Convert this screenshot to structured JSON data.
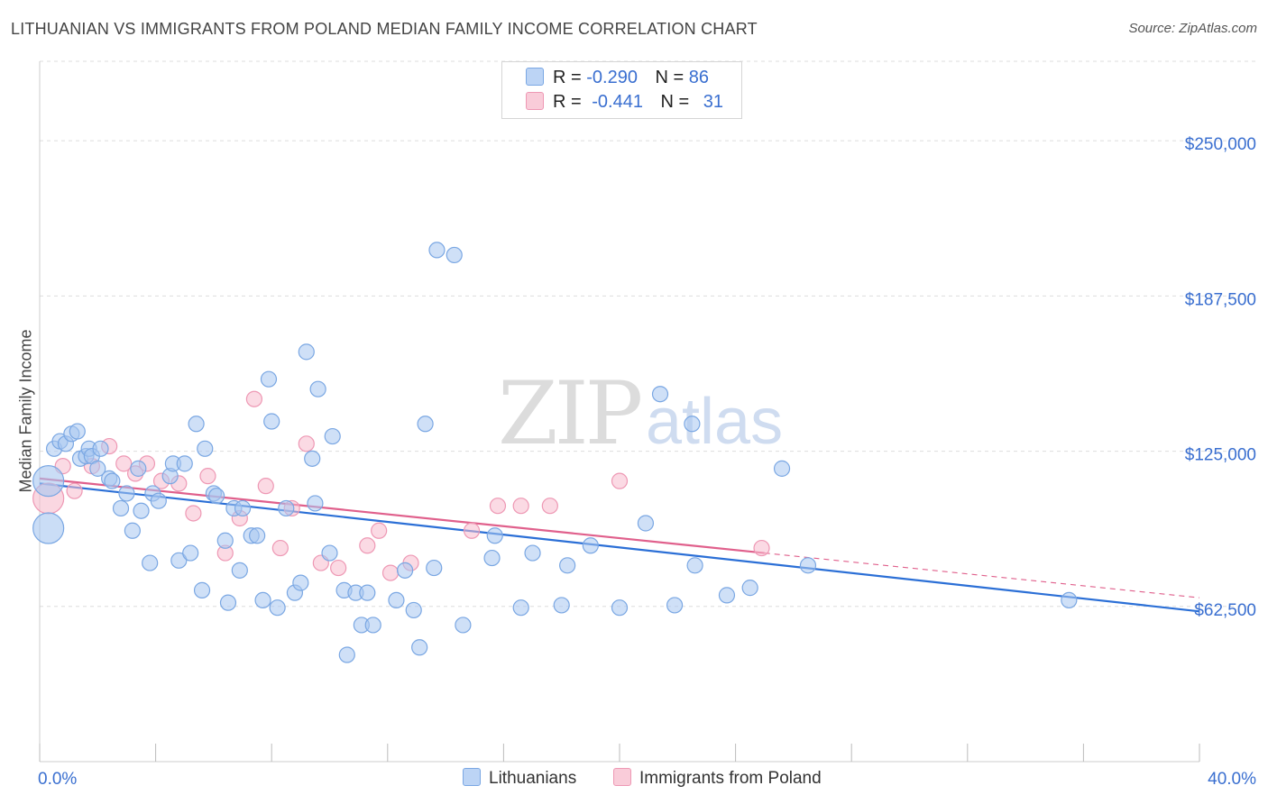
{
  "title": "LITHUANIAN VS IMMIGRANTS FROM POLAND MEDIAN FAMILY INCOME CORRELATION CHART",
  "source": "Source: ZipAtlas.com",
  "watermark": {
    "zip": "ZIP",
    "atlas": "atlas"
  },
  "legend": {
    "rows": [
      {
        "r_label": "R =",
        "r_value": "-0.290",
        "n_label": "N =",
        "n_value": "86"
      },
      {
        "r_label": "R =",
        "r_value": "-0.441",
        "n_label": "N =",
        "n_value": "31"
      }
    ]
  },
  "bottom_legend": {
    "series1": "Lithuanians",
    "series2": "Immigrants from Poland"
  },
  "colors": {
    "blue_fill": "#a7c6f0",
    "blue_stroke": "#7aa7e3",
    "blue_line": "#2b6fd6",
    "pink_fill": "#f7bccd",
    "pink_stroke": "#ee98b4",
    "pink_line": "#e0608c",
    "axis_label": "#3a6fd0",
    "grid": "#dddddd"
  },
  "chart_data": {
    "type": "scatter",
    "title": "LITHUANIAN VS IMMIGRANTS FROM POLAND MEDIAN FAMILY INCOME CORRELATION CHART",
    "xlabel": "",
    "ylabel": "Median Family Income",
    "xlim": [
      0,
      40
    ],
    "ylim": [
      0,
      282000
    ],
    "x_tick_labels": [
      "0.0%",
      "40.0%"
    ],
    "y_ticks": [
      62500,
      125000,
      187500,
      250000
    ],
    "y_tick_labels": [
      "$62,500",
      "$125,000",
      "$187,500",
      "$250,000"
    ],
    "series": [
      {
        "name": "Lithuanians",
        "r": -0.29,
        "n": 86,
        "trend": {
          "x0": 0,
          "y0": 112000,
          "x1": 40,
          "y1": 60500
        },
        "points": [
          [
            0.3,
            113000
          ],
          [
            0.3,
            94000
          ],
          [
            0.5,
            126000
          ],
          [
            0.7,
            129000
          ],
          [
            0.9,
            128000
          ],
          [
            1.1,
            132000
          ],
          [
            1.3,
            133000
          ],
          [
            1.4,
            122000
          ],
          [
            1.6,
            123000
          ],
          [
            1.7,
            126000
          ],
          [
            1.8,
            123000
          ],
          [
            2.0,
            118000
          ],
          [
            2.1,
            126000
          ],
          [
            2.4,
            114000
          ],
          [
            2.5,
            113000
          ],
          [
            2.8,
            102000
          ],
          [
            3.0,
            108000
          ],
          [
            3.2,
            93000
          ],
          [
            3.4,
            118000
          ],
          [
            3.5,
            101000
          ],
          [
            3.8,
            80000
          ],
          [
            3.9,
            108000
          ],
          [
            4.1,
            105000
          ],
          [
            4.5,
            115000
          ],
          [
            4.6,
            120000
          ],
          [
            4.8,
            81000
          ],
          [
            5.0,
            120000
          ],
          [
            5.2,
            84000
          ],
          [
            5.4,
            136000
          ],
          [
            5.7,
            126000
          ],
          [
            5.6,
            69000
          ],
          [
            6.0,
            108000
          ],
          [
            6.1,
            107000
          ],
          [
            6.4,
            89000
          ],
          [
            6.5,
            64000
          ],
          [
            6.7,
            102000
          ],
          [
            6.9,
            77000
          ],
          [
            7.0,
            102000
          ],
          [
            7.3,
            91000
          ],
          [
            7.5,
            91000
          ],
          [
            7.7,
            65000
          ],
          [
            7.9,
            154000
          ],
          [
            8.0,
            137000
          ],
          [
            8.2,
            62000
          ],
          [
            8.5,
            102000
          ],
          [
            8.8,
            68000
          ],
          [
            9.0,
            72000
          ],
          [
            9.2,
            165000
          ],
          [
            9.4,
            122000
          ],
          [
            9.6,
            150000
          ],
          [
            9.5,
            104000
          ],
          [
            10.0,
            84000
          ],
          [
            10.1,
            131000
          ],
          [
            10.5,
            69000
          ],
          [
            10.6,
            43000
          ],
          [
            10.9,
            68000
          ],
          [
            11.1,
            55000
          ],
          [
            11.3,
            68000
          ],
          [
            11.5,
            55000
          ],
          [
            12.3,
            65000
          ],
          [
            12.6,
            77000
          ],
          [
            12.9,
            61000
          ],
          [
            13.1,
            46000
          ],
          [
            13.3,
            136000
          ],
          [
            13.6,
            78000
          ],
          [
            13.7,
            206000
          ],
          [
            14.3,
            204000
          ],
          [
            14.6,
            55000
          ],
          [
            15.6,
            82000
          ],
          [
            15.7,
            91000
          ],
          [
            16.6,
            62000
          ],
          [
            17.0,
            84000
          ],
          [
            18.0,
            63000
          ],
          [
            18.2,
            79000
          ],
          [
            19.0,
            87000
          ],
          [
            20.0,
            62000
          ],
          [
            20.9,
            96000
          ],
          [
            21.4,
            148000
          ],
          [
            21.9,
            63000
          ],
          [
            22.5,
            136000
          ],
          [
            22.6,
            79000
          ],
          [
            23.7,
            67000
          ],
          [
            24.5,
            70000
          ],
          [
            25.6,
            118000
          ],
          [
            26.5,
            79000
          ],
          [
            35.5,
            65000
          ]
        ]
      },
      {
        "name": "Immigrants from Poland",
        "r": -0.441,
        "n": 31,
        "trend": {
          "x0": 0,
          "y0": 114000,
          "x1": 25,
          "y1": 84000
        },
        "trend_dashed": {
          "x0": 25,
          "y0": 84000,
          "x1": 40,
          "y1": 66000
        },
        "points": [
          [
            0.3,
            106000
          ],
          [
            0.8,
            119000
          ],
          [
            1.2,
            109000
          ],
          [
            1.8,
            119000
          ],
          [
            2.4,
            127000
          ],
          [
            2.9,
            120000
          ],
          [
            3.3,
            116000
          ],
          [
            3.7,
            120000
          ],
          [
            4.2,
            113000
          ],
          [
            4.8,
            112000
          ],
          [
            5.3,
            100000
          ],
          [
            5.8,
            115000
          ],
          [
            6.4,
            84000
          ],
          [
            6.9,
            98000
          ],
          [
            7.4,
            146000
          ],
          [
            7.8,
            111000
          ],
          [
            8.3,
            86000
          ],
          [
            8.7,
            102000
          ],
          [
            9.2,
            128000
          ],
          [
            9.7,
            80000
          ],
          [
            10.3,
            78000
          ],
          [
            11.3,
            87000
          ],
          [
            11.7,
            93000
          ],
          [
            12.1,
            76000
          ],
          [
            12.8,
            80000
          ],
          [
            14.9,
            93000
          ],
          [
            15.8,
            103000
          ],
          [
            16.6,
            103000
          ],
          [
            17.6,
            103000
          ],
          [
            20.0,
            113000
          ],
          [
            24.9,
            86000
          ]
        ]
      }
    ]
  }
}
